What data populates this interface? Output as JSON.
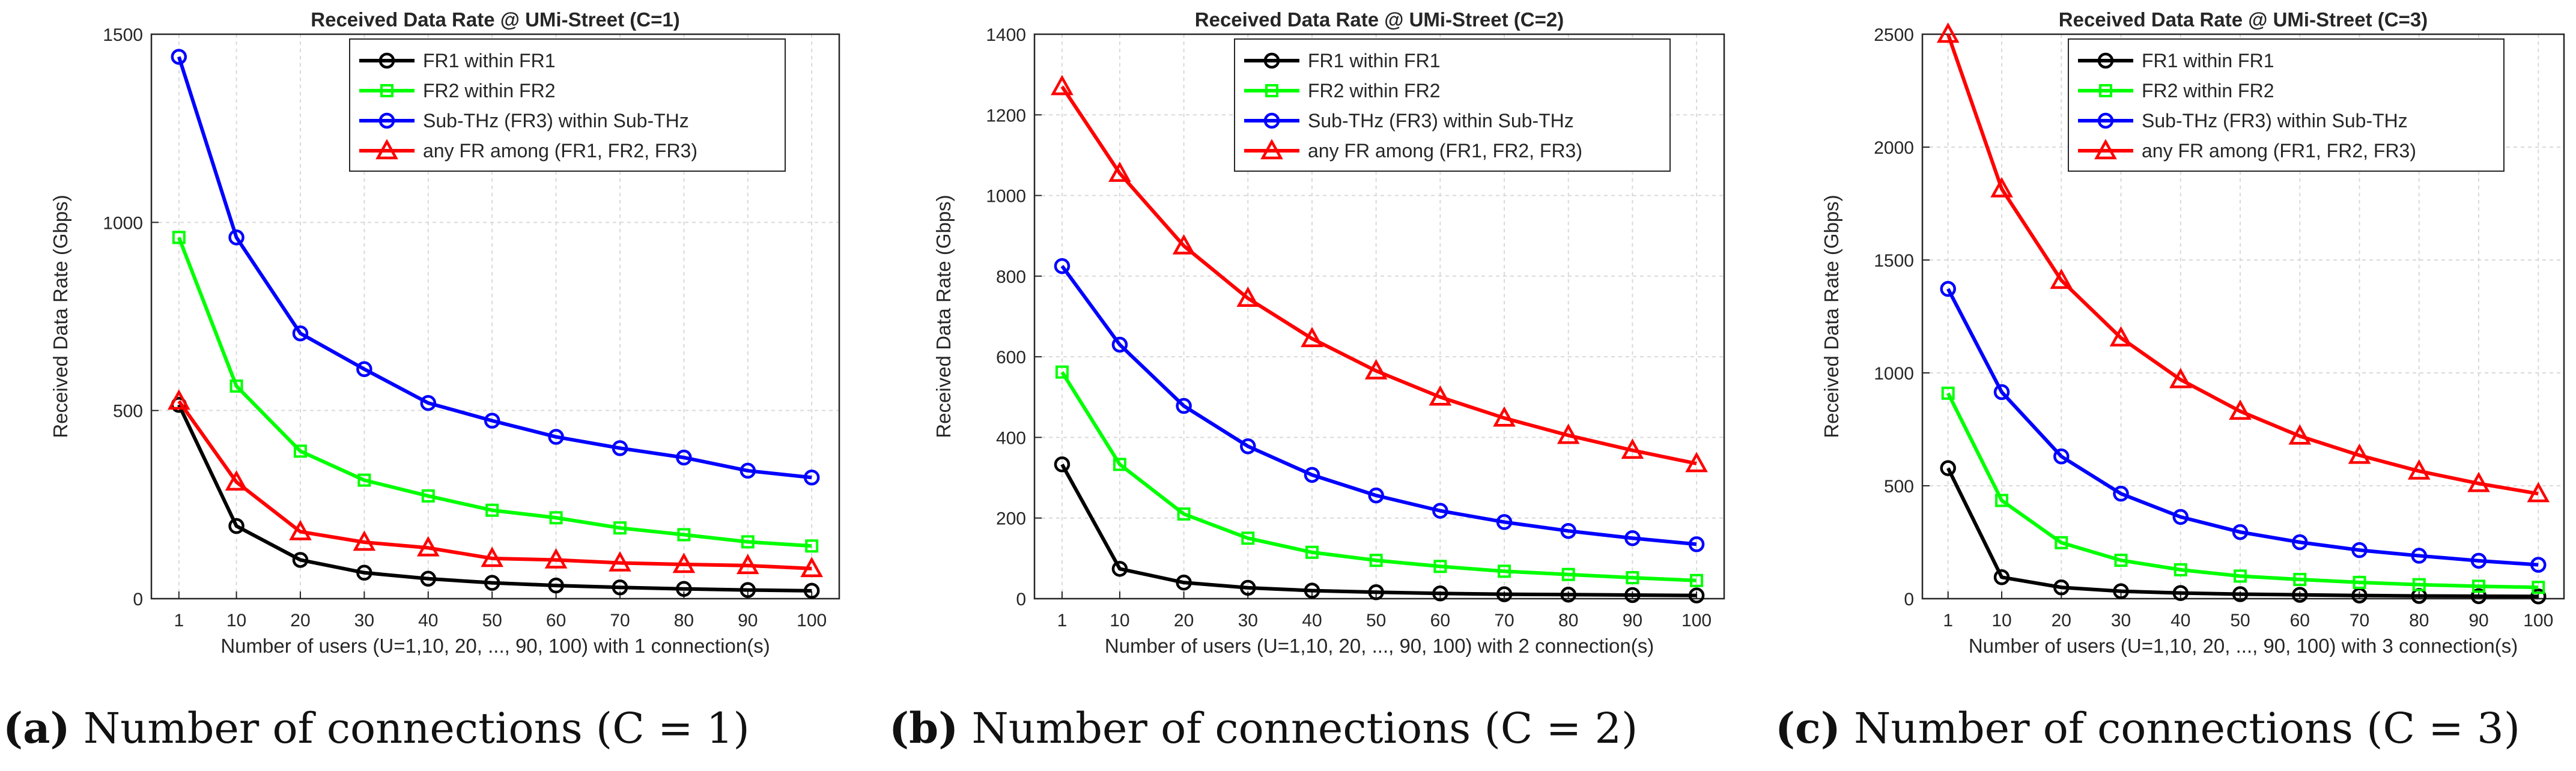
{
  "figure": {
    "colors": {
      "FR1 within FR1": "#000000",
      "FR2 within FR2": "#00ff00",
      "Sub-THz (FR3) within Sub-THz": "#0000ff",
      "any FR among (FR1, FR2, FR3)": "#ff0000"
    }
  },
  "chart_data": [
    {
      "type": "line",
      "title": "Received Data Rate @ UMi-Street (C=1)",
      "xlabel": "Number of users (U=1,10, 20, ..., 90, 100) with 1 connection(s)",
      "ylabel": "Received Data Rate (Gbps)",
      "x": [
        1,
        10,
        20,
        30,
        40,
        50,
        60,
        70,
        80,
        90,
        100
      ],
      "ylim": [
        0,
        1500
      ],
      "yticks": [
        0,
        500,
        1000,
        1500
      ],
      "grid": true,
      "legend_position": "top-right",
      "caption": {
        "letter": "(a)",
        "text": " Number of connections (C = 1)"
      },
      "series": [
        {
          "name": "FR1 within FR1",
          "marker": "circle",
          "values": [
            515,
            193,
            103,
            69,
            53,
            42,
            35,
            30,
            26,
            23,
            21
          ]
        },
        {
          "name": "FR2 within FR2",
          "marker": "square",
          "values": [
            960,
            565,
            392,
            315,
            273,
            235,
            215,
            188,
            170,
            151,
            140
          ]
        },
        {
          "name": "Sub-THz (FR3) within Sub-THz",
          "marker": "circle",
          "values": [
            1440,
            960,
            705,
            610,
            520,
            473,
            430,
            400,
            375,
            340,
            322
          ]
        },
        {
          "name": "any FR among (FR1, FR2, FR3)",
          "marker": "triangle",
          "values": [
            525,
            310,
            178,
            150,
            135,
            107,
            103,
            95,
            91,
            88,
            80
          ]
        }
      ]
    },
    {
      "type": "line",
      "title": "Received Data Rate @ UMi-Street (C=2)",
      "xlabel": "Number of users (U=1,10, 20, ..., 90, 100) with 2 connection(s)",
      "ylabel": "Received Data Rate (Gbps)",
      "x": [
        1,
        10,
        20,
        30,
        40,
        50,
        60,
        70,
        80,
        90,
        100
      ],
      "ylim": [
        0,
        1400
      ],
      "yticks": [
        0,
        200,
        400,
        600,
        800,
        1000,
        1200,
        1400
      ],
      "grid": true,
      "legend_position": "top-right",
      "caption": {
        "letter": "(b)",
        "text": " Number of connections (C = 2)"
      },
      "series": [
        {
          "name": "FR1 within FR1",
          "marker": "circle",
          "values": [
            333,
            74,
            40,
            27,
            20,
            16,
            13,
            11,
            10,
            9,
            8
          ]
        },
        {
          "name": "FR2 within FR2",
          "marker": "square",
          "values": [
            562,
            333,
            210,
            150,
            115,
            95,
            80,
            68,
            60,
            52,
            45
          ]
        },
        {
          "name": "Sub-THz (FR3) within Sub-THz",
          "marker": "circle",
          "values": [
            825,
            630,
            478,
            378,
            307,
            256,
            218,
            190,
            168,
            150,
            135
          ]
        },
        {
          "name": "any FR among (FR1, FR2, FR3)",
          "marker": "triangle",
          "values": [
            1270,
            1055,
            875,
            745,
            645,
            565,
            500,
            448,
            405,
            368,
            335
          ]
        }
      ]
    },
    {
      "type": "line",
      "title": "Received Data Rate @ UMi-Street (C=3)",
      "xlabel": "Number of users (U=1,10, 20, ..., 90, 100) with 3 connection(s)",
      "ylabel": "Received Data Rate (Gbps)",
      "x": [
        1,
        10,
        20,
        30,
        40,
        50,
        60,
        70,
        80,
        90,
        100
      ],
      "ylim": [
        0,
        2500
      ],
      "yticks": [
        0,
        500,
        1000,
        1500,
        2000,
        2500
      ],
      "grid": true,
      "legend_position": "top-right",
      "caption": {
        "letter": "(c)",
        "text": " Number of connections (C = 3)"
      },
      "series": [
        {
          "name": "FR1 within FR1",
          "marker": "circle",
          "values": [
            578,
            95,
            50,
            33,
            25,
            20,
            17,
            14,
            12,
            11,
            10
          ]
        },
        {
          "name": "FR2 within FR2",
          "marker": "square",
          "values": [
            910,
            435,
            248,
            170,
            128,
            100,
            85,
            72,
            62,
            55,
            50
          ]
        },
        {
          "name": "Sub-THz (FR3) within Sub-THz",
          "marker": "circle",
          "values": [
            1372,
            915,
            630,
            465,
            362,
            295,
            250,
            215,
            190,
            168,
            150
          ]
        },
        {
          "name": "any FR among (FR1, FR2, FR3)",
          "marker": "triangle",
          "values": [
            2500,
            1815,
            1410,
            1155,
            970,
            830,
            720,
            635,
            565,
            510,
            465
          ]
        }
      ]
    }
  ]
}
